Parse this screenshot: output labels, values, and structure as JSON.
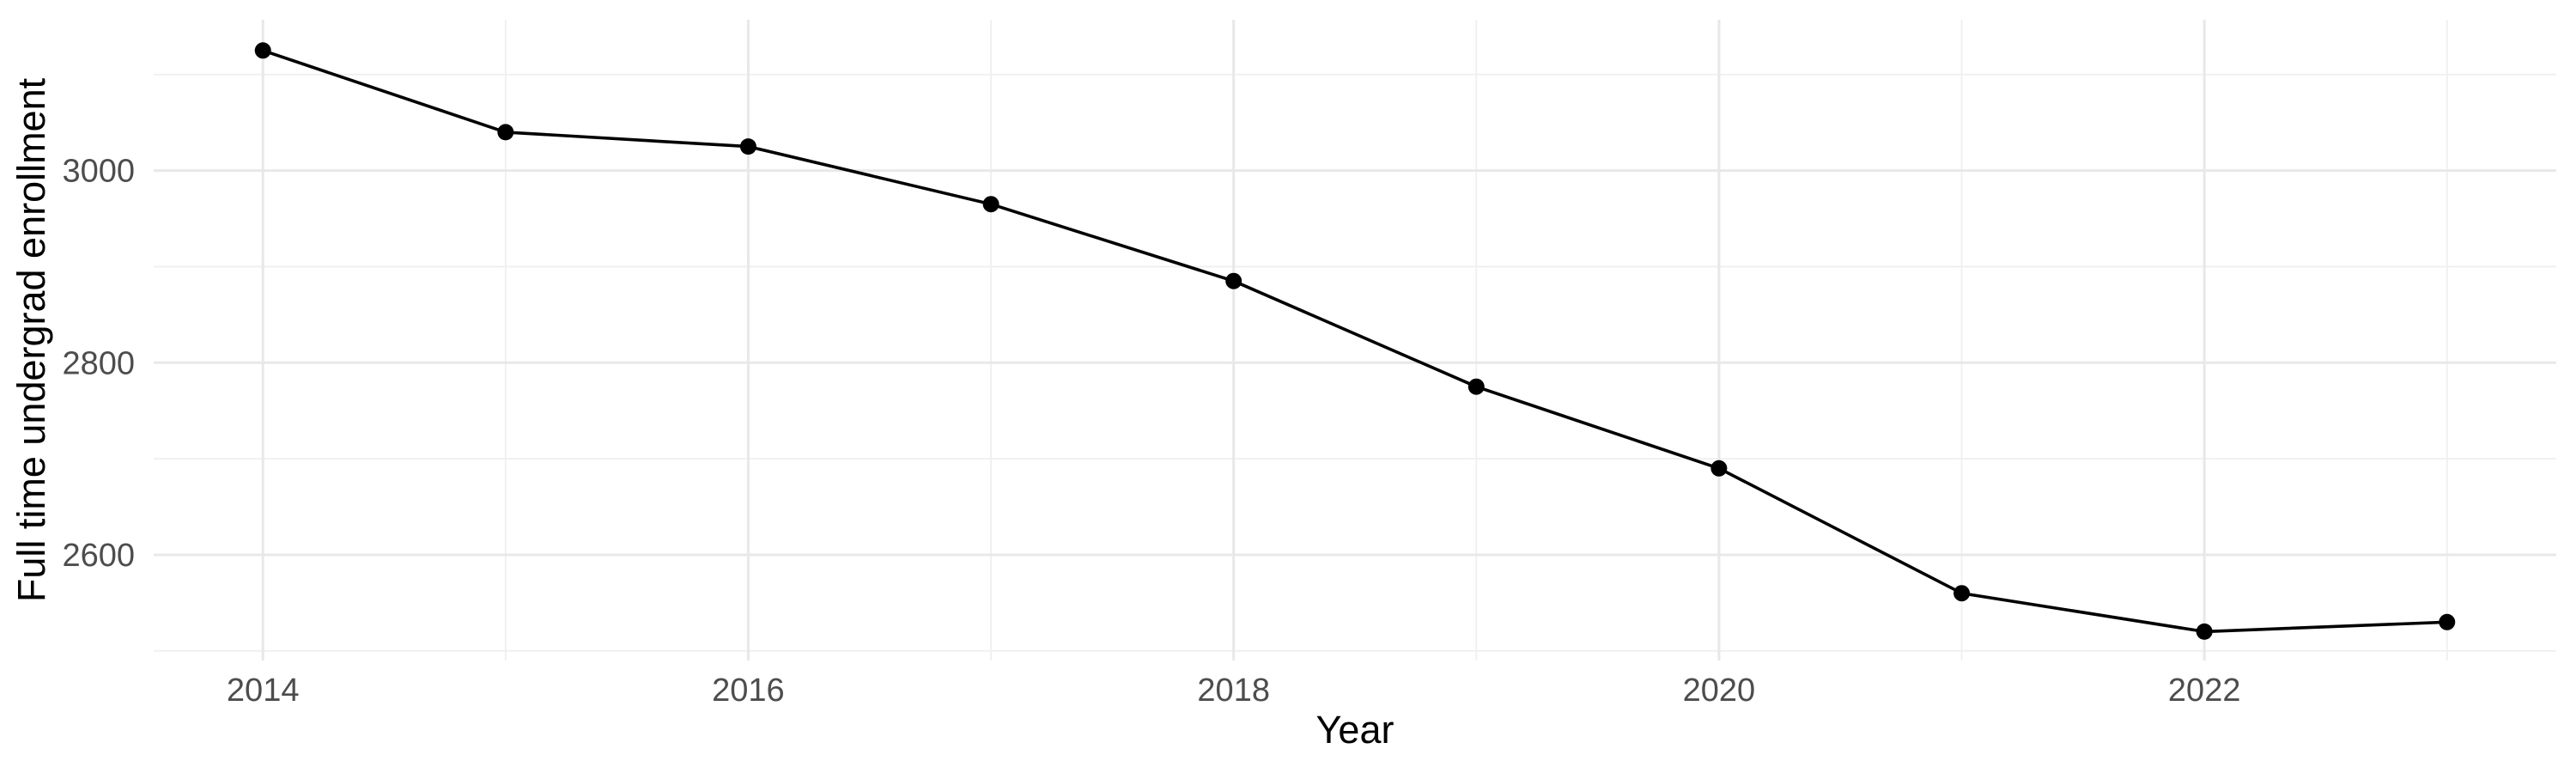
{
  "chart_data": {
    "type": "line",
    "title": "",
    "xlabel": "Year",
    "ylabel": "Full time undergrad enrollment",
    "x": [
      2014,
      2015,
      2016,
      2017,
      2018,
      2019,
      2020,
      2021,
      2022,
      2023
    ],
    "series": [
      {
        "name": "Full time undergrad enrollment",
        "values": [
          3125,
          3040,
          3025,
          2965,
          2885,
          2775,
          2690,
          2560,
          2520,
          2530
        ]
      }
    ],
    "x_major_ticks": [
      2014,
      2016,
      2018,
      2020,
      2022
    ],
    "x_minor_breaks": [
      2015,
      2017,
      2019,
      2021,
      2023
    ],
    "y_major_ticks": [
      3000,
      2800,
      2600
    ],
    "y_minor_breaks": [
      3100,
      2900,
      2700,
      2500
    ],
    "xlim": [
      2013.55,
      2023.45
    ],
    "ylim": [
      2490,
      3157
    ],
    "grid": "on",
    "legend": "none",
    "colors": {
      "line": "#000000",
      "point": "#000000",
      "grid_major": "#e8e8e8",
      "grid_minor": "#efefef",
      "axis_text": "#4d4d4d",
      "axis_title": "#000000",
      "background": "#ffffff"
    }
  }
}
